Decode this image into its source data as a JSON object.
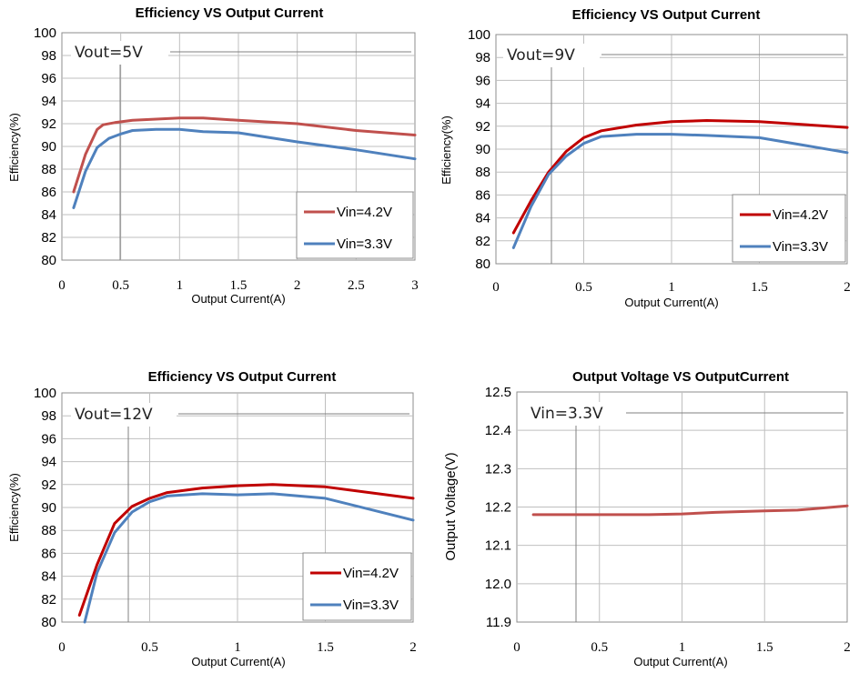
{
  "chart_data": [
    {
      "id": "c1",
      "type": "line",
      "title": "Efficiency VS Output Current",
      "xlabel": "Output Current(A)",
      "ylabel": "Efficiency(%)",
      "annotation": "Vout=5V",
      "xlim": [
        0,
        3
      ],
      "ylim": [
        80,
        100
      ],
      "xticks": [
        0,
        0.5,
        1,
        1.5,
        2,
        2.5,
        3
      ],
      "xtick_labels": [
        "0",
        "0.5",
        "1",
        "1.5",
        "2",
        "2.5",
        "3"
      ],
      "yticks": [
        80,
        82,
        84,
        86,
        88,
        90,
        92,
        94,
        96,
        98,
        100
      ],
      "ytick_labels": [
        "80",
        "82",
        "84",
        "86",
        "88",
        "90",
        "92",
        "94",
        "96",
        "98",
        "100"
      ],
      "grid": true,
      "legend_position": "bottom-right",
      "series": [
        {
          "name": "Vin=4.2V",
          "color": "#c0504d",
          "x": [
            0.1,
            0.2,
            0.3,
            0.35,
            0.45,
            0.6,
            0.8,
            1.0,
            1.2,
            1.5,
            2.0,
            2.5,
            3.0
          ],
          "y": [
            86.0,
            89.3,
            91.5,
            91.9,
            92.1,
            92.3,
            92.4,
            92.5,
            92.5,
            92.3,
            92.0,
            91.4,
            91.0
          ]
        },
        {
          "name": "Vin=3.3V",
          "color": "#4f81bd",
          "x": [
            0.1,
            0.2,
            0.3,
            0.4,
            0.5,
            0.6,
            0.8,
            1.0,
            1.2,
            1.5,
            2.0,
            2.5,
            3.0
          ],
          "y": [
            84.6,
            87.8,
            89.9,
            90.7,
            91.1,
            91.4,
            91.5,
            91.5,
            91.3,
            91.2,
            90.4,
            89.7,
            88.9
          ]
        }
      ]
    },
    {
      "id": "c2",
      "type": "line",
      "title": "Efficiency VS Output Current",
      "xlabel": "Output Current(A)",
      "ylabel": "Efficiency(%)",
      "annotation": "Vout=9V",
      "xlim": [
        0,
        2
      ],
      "ylim": [
        80,
        100
      ],
      "xticks": [
        0,
        0.5,
        1,
        1.5,
        2
      ],
      "xtick_labels": [
        "0",
        "0.5",
        "1",
        "1.5",
        "2"
      ],
      "yticks": [
        80,
        82,
        84,
        86,
        88,
        90,
        92,
        94,
        96,
        98,
        100
      ],
      "ytick_labels": [
        "80",
        "82",
        "84",
        "86",
        "88",
        "90",
        "92",
        "94",
        "96",
        "98",
        "100"
      ],
      "grid": true,
      "legend_position": "bottom-right",
      "series": [
        {
          "name": "Vin=4.2V",
          "color": "#c00000",
          "x": [
            0.1,
            0.2,
            0.3,
            0.4,
            0.5,
            0.6,
            0.8,
            1.0,
            1.2,
            1.5,
            2.0
          ],
          "y": [
            82.7,
            85.5,
            88.0,
            89.8,
            91.0,
            91.6,
            92.1,
            92.4,
            92.5,
            92.4,
            91.9
          ]
        },
        {
          "name": "Vin=3.3V",
          "color": "#4f81bd",
          "x": [
            0.1,
            0.2,
            0.3,
            0.4,
            0.5,
            0.6,
            0.8,
            1.0,
            1.2,
            1.5,
            2.0
          ],
          "y": [
            81.4,
            85.0,
            87.8,
            89.4,
            90.5,
            91.1,
            91.3,
            91.3,
            91.2,
            91.0,
            89.7
          ]
        }
      ]
    },
    {
      "id": "c3",
      "type": "line",
      "title": "Efficiency VS Output Current",
      "xlabel": "Output Current(A)",
      "ylabel": "Efficiency(%)",
      "annotation": "Vout=12V",
      "xlim": [
        0,
        2
      ],
      "ylim": [
        80,
        100
      ],
      "xticks": [
        0,
        0.5,
        1,
        1.5,
        2
      ],
      "xtick_labels": [
        "0",
        "0.5",
        "1",
        "1.5",
        "2"
      ],
      "yticks": [
        80,
        82,
        84,
        86,
        88,
        90,
        92,
        94,
        96,
        98,
        100
      ],
      "ytick_labels": [
        "80",
        "82",
        "84",
        "86",
        "88",
        "90",
        "92",
        "94",
        "96",
        "98",
        "100"
      ],
      "grid": true,
      "legend_position": "bottom-right",
      "series": [
        {
          "name": "Vin=4.2V",
          "color": "#c00000",
          "x": [
            0.1,
            0.2,
            0.3,
            0.4,
            0.5,
            0.6,
            0.8,
            1.0,
            1.2,
            1.5,
            2.0
          ],
          "y": [
            80.6,
            85.0,
            88.6,
            90.1,
            90.8,
            91.3,
            91.7,
            91.9,
            92.0,
            91.8,
            90.8
          ]
        },
        {
          "name": "Vin=3.3V",
          "color": "#4f81bd",
          "x": [
            0.13,
            0.2,
            0.3,
            0.4,
            0.5,
            0.6,
            0.8,
            1.0,
            1.2,
            1.5,
            2.0
          ],
          "y": [
            80.0,
            84.3,
            87.8,
            89.6,
            90.5,
            91.0,
            91.2,
            91.1,
            91.2,
            90.8,
            88.9
          ]
        }
      ]
    },
    {
      "id": "c4",
      "type": "line",
      "title": "Output Voltage VS OutputCurrent",
      "xlabel": "Output Current(A)",
      "ylabel": "Output Voltage(V)",
      "annotation": "Vin=3.3V",
      "xlim": [
        0,
        2
      ],
      "ylim": [
        11.9,
        12.5
      ],
      "xticks": [
        0,
        0.5,
        1,
        1.5,
        2
      ],
      "xtick_labels": [
        "0",
        "0.5",
        "1",
        "1.5",
        "2"
      ],
      "yticks": [
        11.9,
        12.0,
        12.1,
        12.2,
        12.3,
        12.4,
        12.5
      ],
      "ytick_labels": [
        "11.9",
        "12.0",
        "12.1",
        "12.2",
        "12.3",
        "12.4",
        "12.5"
      ],
      "grid": true,
      "series": [
        {
          "name": "",
          "color": "#c0504d",
          "x": [
            0.1,
            0.5,
            0.8,
            1.0,
            1.2,
            1.5,
            1.7,
            2.0
          ],
          "y": [
            12.18,
            12.18,
            12.18,
            12.182,
            12.186,
            12.19,
            12.192,
            12.203
          ]
        }
      ]
    }
  ]
}
